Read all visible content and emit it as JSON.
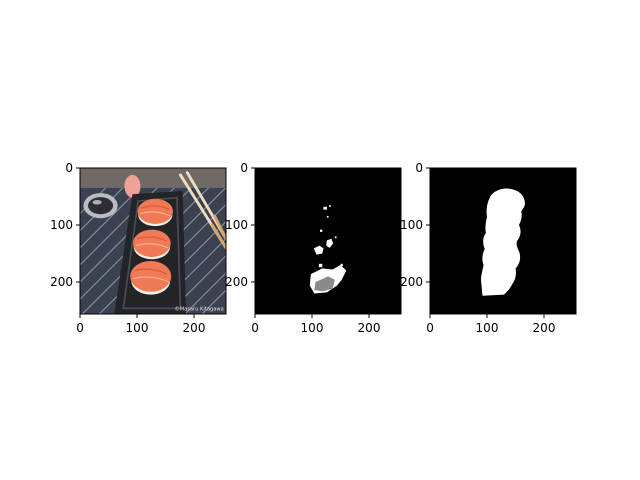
{
  "chart_data": [
    {
      "type": "image",
      "title": "",
      "image_description": "photo of salmon nigiri sushi on a dark plate with chopsticks",
      "xlim": [
        0,
        256
      ],
      "ylim": [
        256,
        0
      ],
      "xticks": [
        0,
        100,
        200
      ],
      "yticks": [
        0,
        100,
        200
      ],
      "xtick_labels": [
        "0",
        "100",
        "200"
      ],
      "ytick_labels": [
        "0",
        "100",
        "200"
      ]
    },
    {
      "type": "image",
      "title": "",
      "image_description": "mostly black mask with small scattered white and gray blobs",
      "xlim": [
        0,
        256
      ],
      "ylim": [
        256,
        0
      ],
      "xticks": [
        0,
        100,
        200
      ],
      "yticks": [
        0,
        100,
        200
      ],
      "xtick_labels": [
        "0",
        "100",
        "200"
      ],
      "ytick_labels": [
        "0",
        "100",
        "200"
      ]
    },
    {
      "type": "image",
      "title": "",
      "image_description": "black background with a single white vertical blob segmentation mask",
      "xlim": [
        0,
        256
      ],
      "ylim": [
        256,
        0
      ],
      "xticks": [
        0,
        100,
        200
      ],
      "yticks": [
        0,
        100,
        200
      ],
      "xtick_labels": [
        "0",
        "100",
        "200"
      ],
      "ytick_labels": [
        "0",
        "100",
        "200"
      ]
    }
  ],
  "colors": {
    "background": "#ffffff",
    "axis": "#000000",
    "mask_bg": "#000000",
    "mask_fg": "#ffffff",
    "mask_gray": "#8a8a8a",
    "salmon": "#f07a55",
    "salmon_dark": "#d9583a",
    "rice": "#f2efe6",
    "plate": "#232427",
    "mat": "#3a4150",
    "mat_line": "#c9ccd6",
    "chopstick": "#f1dcc0",
    "chopstick_tip": "#d9a46a",
    "ginger": "#f2a199",
    "dish": "#b9bcc3"
  },
  "watermark": "©Masaru Kitagawa"
}
